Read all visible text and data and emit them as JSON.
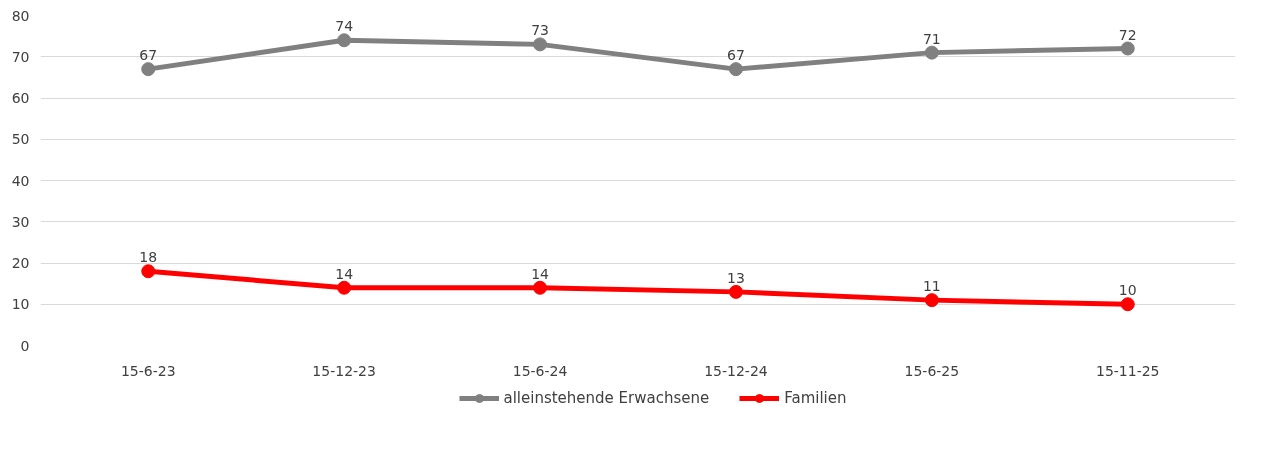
{
  "chart_data": {
    "type": "line",
    "categories": [
      "15-6-23",
      "15-12-23",
      "15-6-24",
      "15-12-24",
      "15-6-25",
      "15-11-25"
    ],
    "series": [
      {
        "name": "alleinstehende Erwachsene",
        "color": "#808080",
        "values": [
          67,
          74,
          73,
          67,
          71,
          72
        ]
      },
      {
        "name": "Familien",
        "color": "#ff0000",
        "values": [
          18,
          14,
          14,
          13,
          11,
          10
        ]
      }
    ],
    "ylim": [
      0,
      80
    ],
    "yticks": [
      0,
      10,
      20,
      30,
      40,
      50,
      60,
      70,
      80
    ],
    "grid": "y",
    "legend": "bottom",
    "marker": "circle",
    "line_style": "solid",
    "data_labels": true
  }
}
